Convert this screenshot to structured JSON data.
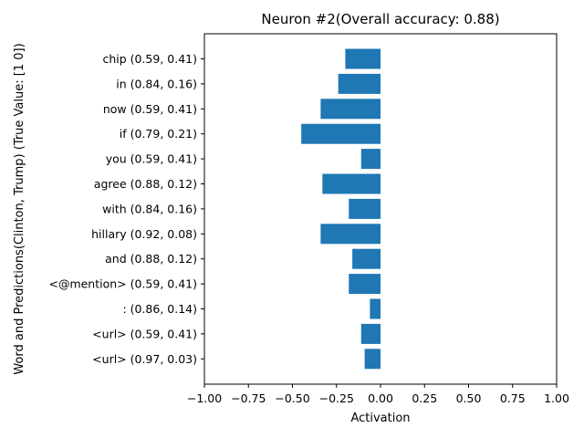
{
  "chart_data": {
    "type": "bar",
    "orientation": "horizontal",
    "title": "Neuron #2(Overall accuracy: 0.88)",
    "xlabel": "Activation",
    "ylabel": "Word and Predictions(Clinton, Trump) (True Value: [1 0])",
    "xlim": [
      -1.0,
      1.0
    ],
    "xticks": [
      "−1.00",
      "−0.75",
      "−0.50",
      "−0.25",
      "0.00",
      "0.25",
      "0.50",
      "0.75",
      "1.00"
    ],
    "xtick_values": [
      -1.0,
      -0.75,
      -0.5,
      -0.25,
      0.0,
      0.25,
      0.5,
      0.75,
      1.0
    ],
    "grid": false,
    "bar_color": "#1f77b4",
    "categories": [
      "chip (0.59, 0.41)",
      "in (0.84, 0.16)",
      "now (0.59, 0.41)",
      "if (0.79, 0.21)",
      "you (0.59, 0.41)",
      "agree (0.88, 0.12)",
      "with (0.84, 0.16)",
      "hillary (0.92, 0.08)",
      "and (0.88, 0.12)",
      "<@mention> (0.59, 0.41)",
      ": (0.86, 0.14)",
      "<url> (0.59, 0.41)",
      "<url> (0.97, 0.03)"
    ],
    "values": [
      -0.2,
      -0.24,
      -0.34,
      -0.45,
      -0.11,
      -0.33,
      -0.18,
      -0.34,
      -0.16,
      -0.18,
      -0.06,
      -0.11,
      -0.09
    ]
  }
}
